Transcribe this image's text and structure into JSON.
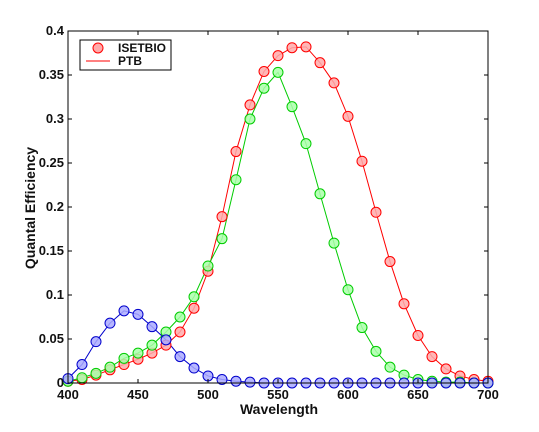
{
  "chart_data": {
    "type": "line",
    "title": "",
    "xlabel": "Wavelength",
    "ylabel": "Quantal Efficiency",
    "xlim": [
      400,
      700
    ],
    "ylim": [
      0,
      0.4
    ],
    "xticks": [
      400,
      450,
      500,
      550,
      600,
      650,
      700
    ],
    "yticks": [
      0,
      0.05,
      0.1,
      0.15,
      0.2,
      0.25,
      0.3,
      0.35,
      0.4
    ],
    "ytick_labels": [
      "0",
      "0.05",
      "0.1",
      "0.15",
      "0.2",
      "0.25",
      "0.3",
      "0.35",
      "0.4"
    ],
    "grid": false,
    "legend": {
      "position": "top-left",
      "entries": [
        {
          "label": "ISETBIO",
          "style": "marker"
        },
        {
          "label": "PTB",
          "style": "line"
        }
      ]
    },
    "x": [
      400,
      410,
      420,
      430,
      440,
      450,
      460,
      470,
      480,
      490,
      500,
      510,
      520,
      530,
      540,
      550,
      560,
      570,
      580,
      590,
      600,
      610,
      620,
      630,
      640,
      650,
      660,
      670,
      680,
      690,
      700
    ],
    "series": [
      {
        "color": "#ff0000",
        "fill": "#ffaaaa",
        "values": [
          0.002,
          0.004,
          0.009,
          0.015,
          0.021,
          0.027,
          0.034,
          0.043,
          0.058,
          0.085,
          0.127,
          0.189,
          0.263,
          0.316,
          0.354,
          0.372,
          0.381,
          0.382,
          0.364,
          0.341,
          0.303,
          0.252,
          0.194,
          0.138,
          0.09,
          0.054,
          0.03,
          0.016,
          0.008,
          0.004,
          0.002
        ]
      },
      {
        "color": "#00cc00",
        "fill": "#aaffaa",
        "values": [
          0.002,
          0.006,
          0.011,
          0.018,
          0.028,
          0.034,
          0.043,
          0.058,
          0.075,
          0.098,
          0.133,
          0.164,
          0.231,
          0.3,
          0.335,
          0.353,
          0.314,
          0.272,
          0.215,
          0.159,
          0.106,
          0.063,
          0.036,
          0.018,
          0.009,
          0.004,
          0.002,
          0.001,
          0.001,
          0.0,
          0.0
        ]
      },
      {
        "color": "#0000cc",
        "fill": "#aaaaff",
        "values": [
          0.005,
          0.021,
          0.047,
          0.068,
          0.082,
          0.078,
          0.064,
          0.049,
          0.03,
          0.017,
          0.008,
          0.004,
          0.002,
          0.001,
          0.0,
          0.0,
          0.0,
          0.0,
          0.0,
          0.0,
          0.0,
          0.0,
          0.0,
          0.0,
          0.0,
          0.0,
          0.0,
          0.0,
          0.0,
          0.0,
          0.0
        ]
      }
    ]
  }
}
